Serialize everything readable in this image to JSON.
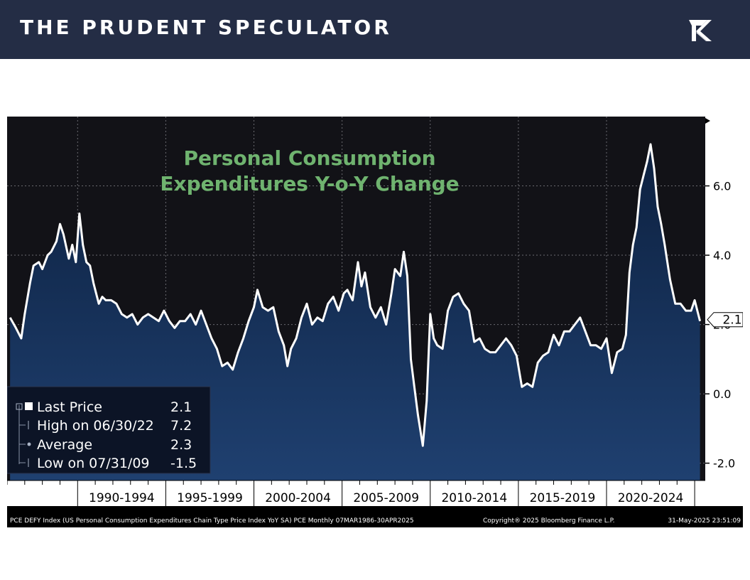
{
  "header": {
    "brand": "THE PRUDENT SPECULATOR",
    "logo_icon": "tps-monogram-icon",
    "bg_color": "#242d45"
  },
  "chart_data": {
    "type": "area",
    "title_lines": [
      "Personal Consumption",
      "Expenditures Y-o-Y Change"
    ],
    "title_color": "#6fb36f",
    "line_color": "#ffffff",
    "fill_color_top": "#0f2647",
    "fill_color_bottom": "#1c3a63",
    "background_color": "#121217",
    "grid": true,
    "ylim": [
      -2.5,
      8.0
    ],
    "yticks": [
      -2.0,
      0.0,
      2.0,
      4.0,
      6.0
    ],
    "ytick_labels": [
      "-2.0",
      "0.0",
      "2.0",
      "4.0",
      "6.0"
    ],
    "xlim": [
      1986.0,
      2025.6
    ],
    "period_labels": [
      "1990-1994",
      "1995-1999",
      "2000-2004",
      "2005-2009",
      "2010-2014",
      "2015-2019",
      "2020-2024"
    ],
    "period_starts": [
      1990,
      1995,
      2000,
      2005,
      2010,
      2015,
      2020
    ],
    "period_end": 2025,
    "last_value_label": "2.1",
    "last_value": 2.1,
    "series": [
      {
        "x": [
          1986.17,
          1986.5,
          1986.8,
          1987.0,
          1987.3,
          1987.5,
          1987.8,
          1988.0,
          1988.3,
          1988.5,
          1988.8,
          1989.0,
          1989.2,
          1989.5,
          1989.7,
          1989.9,
          1990.1,
          1990.3,
          1990.5,
          1990.7,
          1990.9,
          1991.2,
          1991.4,
          1991.6,
          1991.9,
          1992.2,
          1992.5,
          1992.8,
          1993.1,
          1993.4,
          1993.7,
          1994.0,
          1994.3,
          1994.6,
          1994.9,
          1995.2,
          1995.5,
          1995.8,
          1996.1,
          1996.4,
          1996.7,
          1997.0,
          1997.3,
          1997.6,
          1997.9,
          1998.2,
          1998.5,
          1998.8,
          1999.1,
          1999.4,
          1999.7,
          2000.0,
          2000.2,
          2000.5,
          2000.8,
          2001.1,
          2001.4,
          2001.7,
          2001.9,
          2002.1,
          2002.4,
          2002.7,
          2003.0,
          2003.3,
          2003.6,
          2003.9,
          2004.2,
          2004.5,
          2004.8,
          2005.1,
          2005.3,
          2005.6,
          2005.9,
          2006.1,
          2006.3,
          2006.6,
          2006.9,
          2007.2,
          2007.5,
          2007.8,
          2008.0,
          2008.3,
          2008.5,
          2008.7,
          2008.9,
          2009.1,
          2009.3,
          2009.58,
          2009.8,
          2010.0,
          2010.2,
          2010.4,
          2010.7,
          2011.0,
          2011.3,
          2011.6,
          2011.9,
          2012.2,
          2012.5,
          2012.8,
          2013.1,
          2013.4,
          2013.7,
          2014.0,
          2014.3,
          2014.6,
          2014.9,
          2015.2,
          2015.5,
          2015.8,
          2016.1,
          2016.4,
          2016.7,
          2017.0,
          2017.3,
          2017.6,
          2017.9,
          2018.2,
          2018.5,
          2018.8,
          2019.1,
          2019.4,
          2019.7,
          2020.0,
          2020.3,
          2020.6,
          2020.9,
          2021.1,
          2021.3,
          2021.5,
          2021.7,
          2021.9,
          2022.1,
          2022.3,
          2022.5,
          2022.7,
          2022.9,
          2023.1,
          2023.3,
          2023.6,
          2023.9,
          2024.2,
          2024.5,
          2024.8,
          2025.0,
          2025.3
        ],
        "y": [
          2.2,
          1.9,
          1.6,
          2.3,
          3.2,
          3.7,
          3.8,
          3.6,
          4.0,
          4.1,
          4.4,
          4.9,
          4.6,
          3.9,
          4.3,
          3.8,
          5.2,
          4.3,
          3.8,
          3.7,
          3.2,
          2.6,
          2.8,
          2.7,
          2.7,
          2.6,
          2.3,
          2.2,
          2.3,
          2.0,
          2.2,
          2.3,
          2.2,
          2.1,
          2.4,
          2.1,
          1.9,
          2.1,
          2.1,
          2.3,
          2.0,
          2.4,
          2.0,
          1.6,
          1.3,
          0.8,
          0.9,
          0.7,
          1.2,
          1.6,
          2.1,
          2.5,
          3.0,
          2.5,
          2.4,
          2.5,
          1.8,
          1.4,
          0.8,
          1.3,
          1.6,
          2.2,
          2.6,
          2.0,
          2.2,
          2.1,
          2.6,
          2.8,
          2.4,
          2.9,
          3.0,
          2.7,
          3.8,
          3.1,
          3.5,
          2.5,
          2.2,
          2.5,
          2.0,
          2.9,
          3.6,
          3.4,
          4.1,
          3.4,
          1.0,
          0.2,
          -0.6,
          -1.5,
          -0.2,
          2.3,
          1.6,
          1.4,
          1.3,
          2.4,
          2.8,
          2.9,
          2.6,
          2.4,
          1.5,
          1.6,
          1.3,
          1.2,
          1.2,
          1.4,
          1.6,
          1.4,
          1.1,
          0.2,
          0.3,
          0.2,
          0.9,
          1.1,
          1.2,
          1.7,
          1.4,
          1.8,
          1.8,
          2.0,
          2.2,
          1.8,
          1.4,
          1.4,
          1.3,
          1.6,
          0.6,
          1.2,
          1.3,
          1.7,
          3.5,
          4.3,
          4.8,
          5.9,
          6.3,
          6.7,
          7.2,
          6.5,
          5.4,
          4.9,
          4.3,
          3.3,
          2.6,
          2.6,
          2.4,
          2.4,
          2.7,
          2.1
        ]
      }
    ],
    "legend": {
      "placement": "bottom-left",
      "entries": [
        {
          "label": "Last Price",
          "value": "2.1",
          "icon": "square-marker-icon"
        },
        {
          "label": "High on 06/30/22",
          "value": "7.2",
          "icon": "high-marker-icon"
        },
        {
          "label": "Average",
          "value": "2.3",
          "icon": "average-marker-icon"
        },
        {
          "label": "Low on 07/31/09",
          "value": "-1.5",
          "icon": "low-marker-icon"
        }
      ]
    },
    "footer": {
      "left": "PCE DEFY Index (US Personal Consumption Expenditures Chain Type Price Index YoY SA) PCE  Monthly 07MAR1986-30APR2025",
      "center": "Copyright® 2025 Bloomberg Finance L.P.",
      "right": "31-May-2025 23:51:09"
    }
  }
}
